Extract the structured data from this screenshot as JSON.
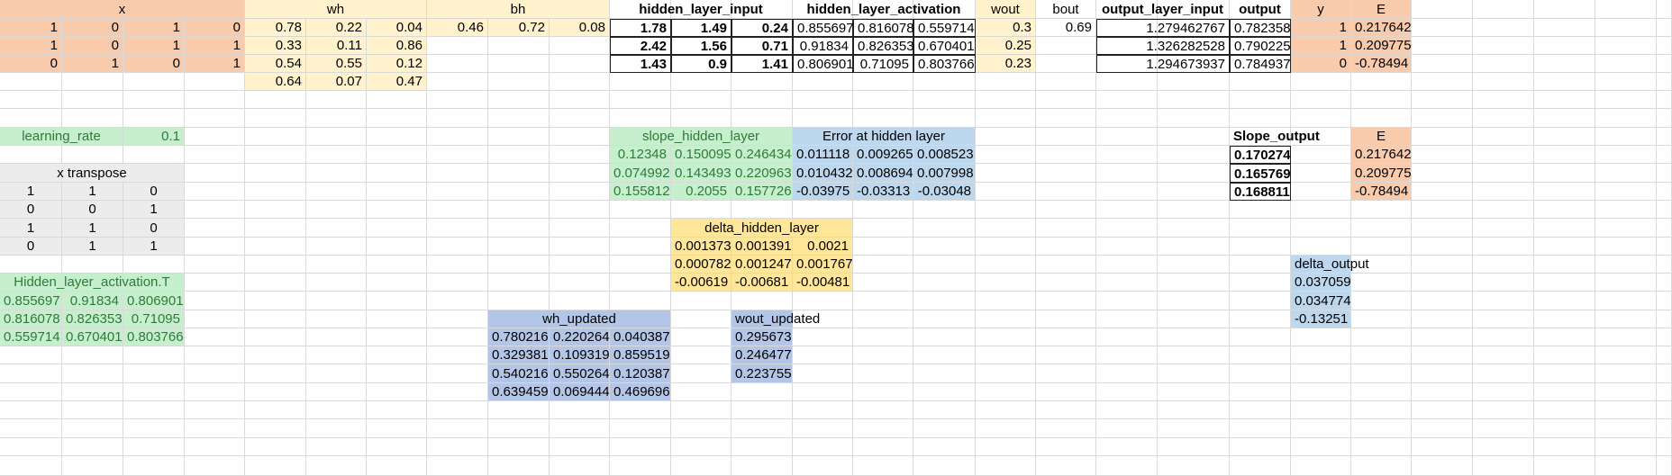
{
  "colors": {
    "orange": "#f8cbad",
    "yellow": "#fff2cc",
    "grey": "#ececec",
    "green": "#c6efce",
    "blue": "#bdd7ee",
    "gold": "#ffe699",
    "periwinkle": "#b4c6e7",
    "text_green": "#2f7a3a"
  },
  "headers": {
    "x": "x",
    "wh": "wh",
    "bh": "bh",
    "hidden_layer_input": "hidden_layer_input",
    "hidden_layer_activation": "hidden_layer_activation",
    "wout": "wout",
    "bout": "bout",
    "output_layer_input": "output_layer_input",
    "output": "output",
    "y": "y",
    "E": "E"
  },
  "x": [
    [
      "1",
      "0",
      "1",
      "0"
    ],
    [
      "1",
      "0",
      "1",
      "1"
    ],
    [
      "0",
      "1",
      "0",
      "1"
    ]
  ],
  "wh": [
    [
      "0.78",
      "0.22",
      "0.04"
    ],
    [
      "0.33",
      "0.11",
      "0.86"
    ],
    [
      "0.54",
      "0.55",
      "0.12"
    ],
    [
      "0.64",
      "0.07",
      "0.47"
    ]
  ],
  "bh": [
    "0.46",
    "0.72",
    "0.08"
  ],
  "hidden_layer_input": [
    [
      "1.78",
      "1.49",
      "0.24"
    ],
    [
      "2.42",
      "1.56",
      "0.71"
    ],
    [
      "1.43",
      "0.9",
      "1.41"
    ]
  ],
  "hidden_layer_activation": [
    [
      "0.855697",
      "0.816078",
      "0.559714"
    ],
    [
      "0.91834",
      "0.826353",
      "0.670401"
    ],
    [
      "0.806901",
      "0.71095",
      "0.803766"
    ]
  ],
  "wout": [
    "0.3",
    "0.25",
    "0.23"
  ],
  "bout": "0.69",
  "output_layer_input": [
    "1.279462767",
    "1.326282528",
    "1.294673937"
  ],
  "output": [
    "0.782358",
    "0.790225",
    "0.784937"
  ],
  "y": [
    "1",
    "1",
    "0"
  ],
  "E": [
    "0.217642",
    "0.209775",
    "-0.78494"
  ],
  "learning_rate": {
    "label": "learning_rate",
    "value": "0.1"
  },
  "x_transpose": {
    "title": "x transpose",
    "rows": [
      [
        "1",
        "1",
        "0"
      ],
      [
        "0",
        "0",
        "1"
      ],
      [
        "1",
        "1",
        "0"
      ],
      [
        "0",
        "1",
        "1"
      ]
    ]
  },
  "hidden_activation_T": {
    "title": "Hidden_layer_activation.T",
    "rows": [
      [
        "0.855697",
        "0.91834",
        "0.806901"
      ],
      [
        "0.816078",
        "0.826353",
        "0.71095"
      ],
      [
        "0.559714",
        "0.670401",
        "0.803766"
      ]
    ]
  },
  "slope_hidden_layer": {
    "title": "slope_hidden_layer",
    "rows": [
      [
        "0.12348",
        "0.150095",
        "0.246434"
      ],
      [
        "0.074992",
        "0.143493",
        "0.220963"
      ],
      [
        "0.155812",
        "0.2055",
        "0.157726"
      ]
    ]
  },
  "error_hidden": {
    "title": "Error at hidden layer",
    "rows": [
      [
        "0.011118",
        "0.009265",
        "0.008523"
      ],
      [
        "0.010432",
        "0.008694",
        "0.007998"
      ],
      [
        "-0.03975",
        "-0.03313",
        "-0.03048"
      ]
    ]
  },
  "delta_hidden": {
    "title": "delta_hidden_layer",
    "rows": [
      [
        "0.001373",
        "0.001391",
        "0.0021"
      ],
      [
        "0.000782",
        "0.001247",
        "0.001767"
      ],
      [
        "-0.00619",
        "-0.00681",
        "-0.00481"
      ]
    ]
  },
  "wh_updated": {
    "title": "wh_updated",
    "rows": [
      [
        "0.780216",
        "0.220264",
        "0.040387"
      ],
      [
        "0.329381",
        "0.109319",
        "0.859519"
      ],
      [
        "0.540216",
        "0.550264",
        "0.120387"
      ],
      [
        "0.639459",
        "0.069444",
        "0.469696"
      ]
    ]
  },
  "wout_updated": {
    "title": "wout_updated",
    "values": [
      "0.295673",
      "0.246477",
      "0.223755"
    ]
  },
  "slope_output": {
    "title": "Slope_output",
    "values": [
      "0.170274",
      "0.165769",
      "0.168811"
    ]
  },
  "E2": {
    "title": "E",
    "values": [
      "0.217642",
      "0.209775",
      "-0.78494"
    ]
  },
  "delta_output": {
    "title": "delta_output",
    "values": [
      "0.037059",
      "0.034774",
      "-0.13251"
    ]
  }
}
